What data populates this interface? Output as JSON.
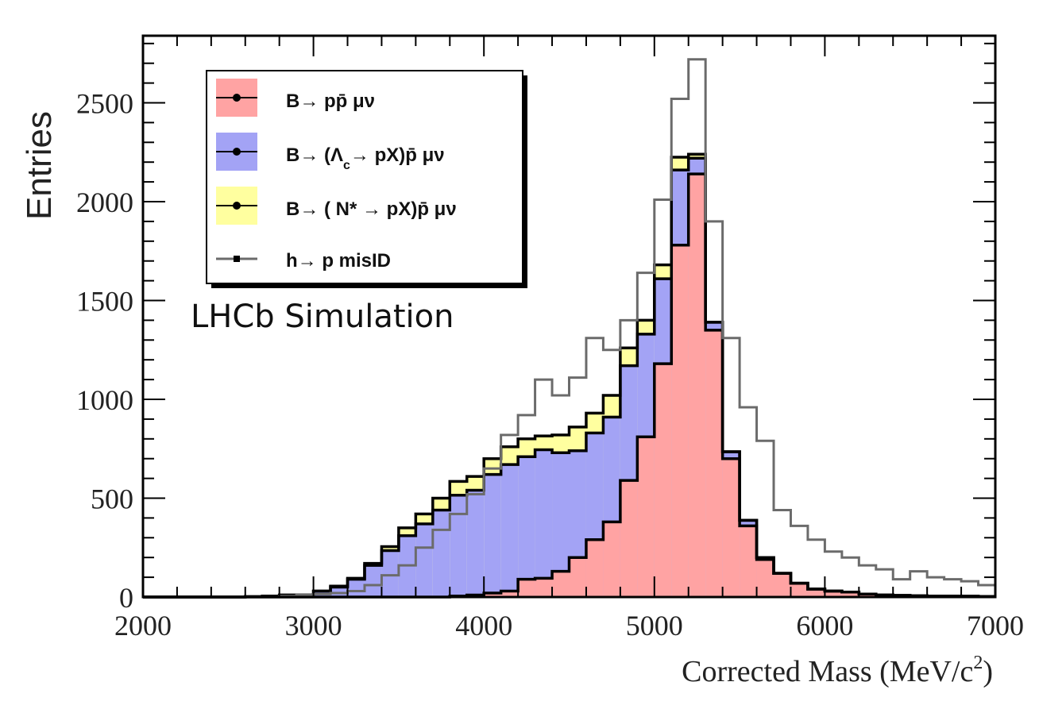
{
  "chart_data": {
    "type": "bar",
    "subtype": "stacked-histogram",
    "xlabel": "Corrected Mass (MeV/c",
    "xlabel_sup": "2",
    "xlabel_close": ")",
    "ylabel": "Entries",
    "xlim": [
      2000,
      7000
    ],
    "ylim": [
      0,
      2800
    ],
    "bin_width": 100,
    "x_ticks": [
      "2000",
      "3000",
      "4000",
      "5000",
      "6000",
      "7000"
    ],
    "x_tick_values": [
      2000,
      3000,
      4000,
      5000,
      6000,
      7000
    ],
    "y_ticks": [
      "0",
      "500",
      "1000",
      "1500",
      "2000",
      "2500"
    ],
    "y_tick_values": [
      0,
      500,
      1000,
      1500,
      2000,
      2500
    ],
    "annotation": "LHCb Simulation",
    "colors": {
      "pp": "#ffa3a3",
      "lambdac": "#a3a3f5",
      "nstar": "#ffff9f",
      "stack_outline": "#000000",
      "misid": "#6b6b6b"
    },
    "series": [
      {
        "name": "B→ pp̄ μν",
        "legend": {
          "main": "B→ pp̄ μν"
        },
        "values": [
          0,
          0,
          0,
          0,
          0,
          0,
          0,
          0,
          0,
          0,
          0,
          0,
          0,
          0,
          0,
          0,
          0,
          0,
          5,
          10,
          20,
          30,
          90,
          95,
          130,
          200,
          290,
          380,
          590,
          810,
          1180,
          1780,
          2140,
          1350,
          700,
          360,
          190,
          120,
          70,
          40,
          30,
          25,
          15,
          10,
          8,
          6,
          5,
          5,
          4,
          3
        ]
      },
      {
        "name": "B→ (Λc→ pX)p̄ μν",
        "legend": {
          "main": "B→ (Λ",
          "sub": "c",
          "rest": "→ pX)p̄ μν"
        },
        "values": [
          0,
          0,
          0,
          0,
          0,
          0,
          2,
          5,
          10,
          10,
          30,
          50,
          90,
          160,
          235,
          310,
          370,
          440,
          510,
          530,
          600,
          640,
          620,
          650,
          600,
          540,
          540,
          530,
          580,
          520,
          430,
          380,
          80,
          40,
          35,
          28,
          10,
          0,
          0,
          0,
          0,
          0,
          0,
          0,
          0,
          0,
          0,
          0,
          0,
          0
        ]
      },
      {
        "name": "B→ ( N* → pX)p̄ μν",
        "legend": {
          "main": "B→ ( N* → pX)p̄ μν"
        },
        "values": [
          0,
          0,
          0,
          0,
          0,
          0,
          0,
          0,
          0,
          0,
          0,
          5,
          5,
          10,
          20,
          40,
          50,
          60,
          70,
          70,
          80,
          90,
          90,
          70,
          90,
          120,
          100,
          110,
          90,
          70,
          70,
          65,
          20,
          0,
          0,
          0,
          0,
          0,
          0,
          0,
          0,
          0,
          0,
          0,
          0,
          0,
          0,
          0,
          0,
          0
        ]
      },
      {
        "name": "h→ p misID",
        "legend": {
          "main": "h→ p misID"
        },
        "overlay": true,
        "values": [
          0,
          0,
          0,
          0,
          0,
          0,
          0,
          0,
          5,
          10,
          15,
          20,
          30,
          60,
          110,
          160,
          250,
          340,
          420,
          520,
          650,
          820,
          920,
          1100,
          1020,
          1110,
          1310,
          1250,
          1400,
          1640,
          2010,
          2520,
          2720,
          1900,
          1310,
          960,
          790,
          440,
          360,
          290,
          230,
          200,
          160,
          140,
          90,
          130,
          100,
          90,
          80,
          60
        ]
      }
    ]
  }
}
